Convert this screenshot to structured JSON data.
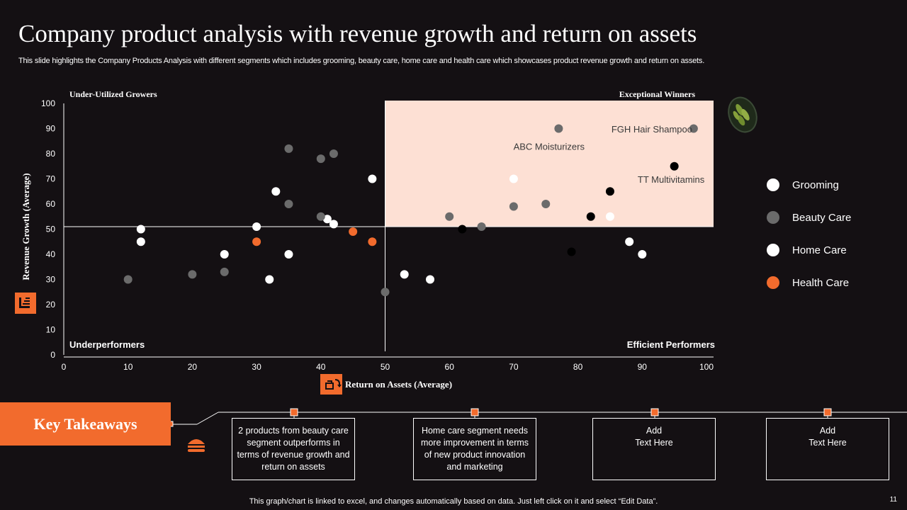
{
  "title": "Company product analysis with revenue growth and return on assets",
  "subtitle": "This slide highlights the Company Products Analysis with different segments which includes grooming, beauty care, home care and health care which showcases product revenue growth and return on assets.",
  "quadrants": {
    "top_left": "Under-Utilized   Growers",
    "top_right": "Exceptional   Winners",
    "bottom_left": "Underperformers",
    "bottom_right": "Efficient Performers"
  },
  "colors": {
    "background": "#141013",
    "accent": "#f26b2d",
    "highlight": "#fde0d4",
    "grooming": "#ffffff",
    "beauty_care": "#6b6b6b",
    "home_care": "#ffffff",
    "health_care": "#f26b2d"
  },
  "chart_data": {
    "type": "scatter",
    "xlabel": "Return on Assets (Average)",
    "ylabel": "Revenue Growth (Average)",
    "xlim": [
      0,
      100
    ],
    "ylim": [
      0,
      100
    ],
    "xticks": [
      0,
      10,
      20,
      30,
      40,
      50,
      60,
      70,
      80,
      90,
      100
    ],
    "yticks": [
      0,
      10,
      20,
      30,
      40,
      50,
      60,
      70,
      80,
      90,
      100
    ],
    "divider": {
      "x": 50,
      "y": 51
    },
    "highlight_region": {
      "x": [
        50,
        100
      ],
      "y": [
        51,
        100
      ]
    },
    "series": [
      {
        "name": "Grooming",
        "color": "#ffffff",
        "points": [
          [
            12,
            50
          ],
          [
            12,
            45
          ],
          [
            33,
            65
          ],
          [
            30,
            51
          ],
          [
            25,
            40
          ],
          [
            32,
            30
          ],
          [
            35,
            40
          ],
          [
            41,
            54
          ],
          [
            42,
            52
          ],
          [
            48,
            70
          ]
        ]
      },
      {
        "name": "Beauty Care",
        "color": "#6b6b6b",
        "points": [
          [
            10,
            30
          ],
          [
            20,
            32
          ],
          [
            25,
            33
          ],
          [
            35,
            82
          ],
          [
            35,
            60
          ],
          [
            40,
            78
          ],
          [
            42,
            80
          ],
          [
            40,
            55
          ],
          [
            50,
            25
          ],
          [
            60,
            55
          ],
          [
            65,
            51
          ],
          [
            70,
            59
          ],
          [
            75,
            60
          ],
          [
            77,
            90
          ],
          [
            98,
            90
          ]
        ]
      },
      {
        "name": "Home Care",
        "color": "#ffffff",
        "points": [
          [
            53,
            32
          ],
          [
            57,
            30
          ],
          [
            70,
            70
          ],
          [
            85,
            55
          ],
          [
            88,
            45
          ],
          [
            90,
            40
          ]
        ]
      },
      {
        "name": "Health Care",
        "color": "#f26b2d",
        "points": [
          [
            30,
            45
          ],
          [
            45,
            49
          ],
          [
            48,
            45
          ]
        ]
      },
      {
        "name": "",
        "color": "#000000",
        "points": [
          [
            62,
            50
          ],
          [
            79,
            41
          ],
          [
            82,
            55
          ],
          [
            85,
            65
          ],
          [
            95,
            75
          ]
        ]
      }
    ],
    "annotations": [
      {
        "text": "FGH Hair Shampoo",
        "x": 91.5,
        "y": 88.5
      },
      {
        "text": "ABC Moisturizers",
        "x": 75.5,
        "y": 81.5
      },
      {
        "text": "TT Multivitamins",
        "x": 94.5,
        "y": 68.5
      }
    ]
  },
  "legend": [
    "Grooming",
    "Beauty Care",
    "Home Care",
    "Health Care"
  ],
  "key_takeaways": {
    "label": "Key Takeaways",
    "items": [
      "2 products from beauty care segment outperforms in terms of revenue  growth and return on assets",
      "Home care segment needs more improvement  in terms of new product innovation and marketing",
      "Add\nText Here",
      "Add\nText Here"
    ]
  },
  "footer": "This graph/chart is linked to excel,  and changes automatically based on data. Just left click on it and select “Edit Data”.",
  "page_number": "11"
}
